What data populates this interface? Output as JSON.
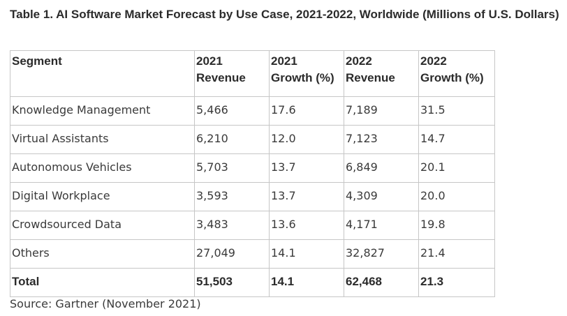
{
  "title": "Table 1. AI Software Market Forecast by Use Case, 2021-2022, Worldwide (Millions of U.S. Dollars)",
  "table": {
    "headers": [
      [
        "Segment"
      ],
      [
        "2021",
        "Revenue"
      ],
      [
        "2021",
        "Growth (%)"
      ],
      [
        "2022",
        "Revenue"
      ],
      [
        "2022",
        "Growth (%)"
      ]
    ],
    "rows": [
      [
        "Knowledge Management",
        "5,466",
        "17.6",
        "7,189",
        "31.5"
      ],
      [
        "Virtual Assistants",
        "6,210",
        "12.0",
        "7,123",
        "14.7"
      ],
      [
        "Autonomous Vehicles",
        "5,703",
        "13.7",
        "6,849",
        "20.1"
      ],
      [
        "Digital Workplace",
        "3,593",
        "13.7",
        "4,309",
        "20.0"
      ],
      [
        "Crowdsourced Data",
        "3,483",
        "13.6",
        "4,171",
        "19.8"
      ],
      [
        "Others",
        "27,049",
        "14.1",
        "32,827",
        "21.4"
      ]
    ],
    "total": [
      "Total",
      "51,503",
      "14.1",
      "62,468",
      "21.3"
    ]
  },
  "source": "Source: Gartner (November 2021)"
}
